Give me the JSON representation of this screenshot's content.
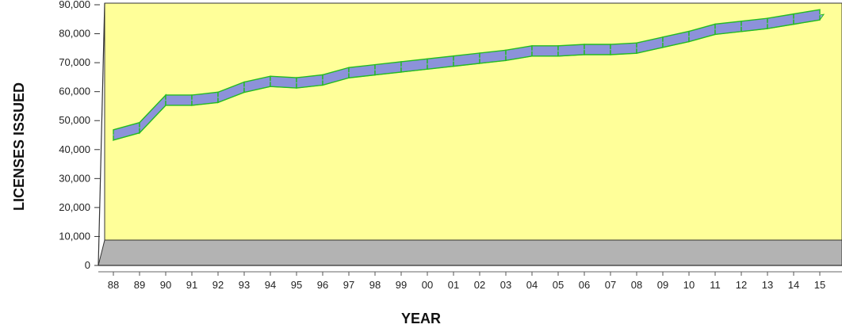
{
  "chart_data": {
    "type": "line",
    "title": "",
    "xlabel": "YEAR",
    "ylabel": "LICENSES ISSUED",
    "categories": [
      "88",
      "89",
      "90",
      "91",
      "92",
      "93",
      "94",
      "95",
      "96",
      "97",
      "98",
      "99",
      "00",
      "01",
      "02",
      "03",
      "04",
      "05",
      "06",
      "07",
      "08",
      "09",
      "10",
      "11",
      "12",
      "13",
      "14",
      "15"
    ],
    "values": [
      46000,
      48500,
      58000,
      58000,
      59000,
      62500,
      64500,
      64000,
      65000,
      67500,
      68500,
      69500,
      70500,
      71500,
      72500,
      73500,
      75000,
      75000,
      75500,
      75500,
      76000,
      78000,
      80000,
      82500,
      83500,
      84500,
      86000,
      87500
    ],
    "ylim": [
      0,
      90000
    ],
    "yticks": [
      "0",
      "10,000",
      "20,000",
      "30,000",
      "40,000",
      "50,000",
      "60,000",
      "70,000",
      "80,000",
      "90,000"
    ],
    "grid": false,
    "legend": "none",
    "colors": {
      "wall": "#ffff99",
      "floor": "#b3b3b3",
      "ribbon_top": "#a3a8e6",
      "ribbon_front": "#8c92da",
      "ribbon_edge": "#22bb22"
    }
  }
}
